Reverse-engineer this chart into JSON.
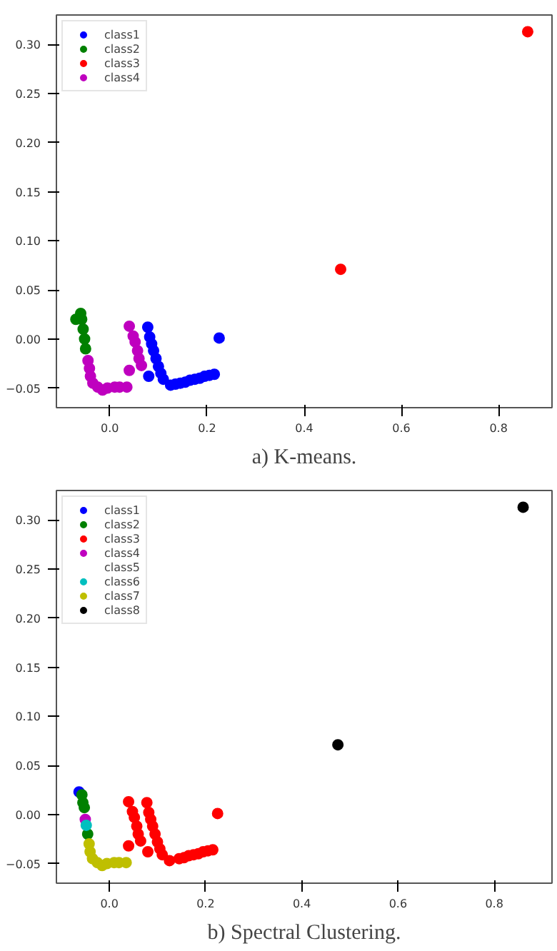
{
  "chart_data": [
    {
      "type": "scatter",
      "title": "a) K-means.",
      "marker": "circle",
      "legend": "top left",
      "grid": false,
      "xlim": [
        -0.11,
        0.91
      ],
      "ylim": [
        -0.07,
        0.33
      ],
      "xticks": [
        {
          "value": 0.0,
          "label": "0.0"
        },
        {
          "value": 0.2,
          "label": "0.2"
        },
        {
          "value": 0.4,
          "label": "0.4"
        },
        {
          "value": 0.6,
          "label": "0.6"
        },
        {
          "value": 0.8,
          "label": "0.8"
        }
      ],
      "yticks": [
        {
          "value": -0.05,
          "label": "−0.05"
        },
        {
          "value": 0.0,
          "label": "0.00"
        },
        {
          "value": 0.05,
          "label": "0.05"
        },
        {
          "value": 0.1,
          "label": "0.10"
        },
        {
          "value": 0.15,
          "label": "0.15"
        },
        {
          "value": 0.2,
          "label": "0.20"
        },
        {
          "value": 0.25,
          "label": "0.25"
        },
        {
          "value": 0.3,
          "label": "0.30"
        }
      ],
      "series": [
        {
          "name": "class1",
          "color": "#0000ff",
          "x": [
            0.078,
            0.082,
            0.086,
            0.09,
            0.095,
            0.1,
            0.105,
            0.11,
            0.125,
            0.135,
            0.145,
            0.155,
            0.165,
            0.175,
            0.185,
            0.195,
            0.205,
            0.215,
            0.225,
            0.08
          ],
          "values": [
            0.012,
            0.002,
            -0.005,
            -0.012,
            -0.02,
            -0.028,
            -0.035,
            -0.041,
            -0.047,
            -0.046,
            -0.045,
            -0.044,
            -0.042,
            -0.041,
            -0.04,
            -0.038,
            -0.037,
            -0.036,
            0.001,
            -0.038
          ]
        },
        {
          "name": "class2",
          "color": "#008000",
          "x": [
            -0.07,
            -0.06,
            -0.058,
            -0.055,
            -0.052,
            -0.05
          ],
          "values": [
            0.02,
            0.026,
            0.02,
            0.01,
            0.0,
            -0.01
          ]
        },
        {
          "name": "class3",
          "color": "#ff0000",
          "x": [
            0.475,
            0.86
          ],
          "values": [
            0.071,
            0.313
          ]
        },
        {
          "name": "class4",
          "color": "#bf00bf",
          "x": [
            -0.045,
            -0.042,
            -0.04,
            -0.035,
            -0.025,
            -0.015,
            -0.005,
            0.01,
            0.02,
            0.035,
            0.04,
            0.048,
            0.052,
            0.057,
            0.06,
            0.065,
            0.04
          ],
          "values": [
            -0.022,
            -0.03,
            -0.038,
            -0.045,
            -0.049,
            -0.052,
            -0.05,
            -0.049,
            -0.049,
            -0.049,
            0.013,
            0.003,
            -0.003,
            -0.012,
            -0.02,
            -0.027,
            -0.032
          ]
        }
      ]
    },
    {
      "type": "scatter",
      "title": "b) Spectral Clustering.",
      "marker": "circle",
      "legend": "top left",
      "grid": false,
      "xlim": [
        -0.11,
        0.92
      ],
      "ylim": [
        -0.07,
        0.33
      ],
      "xticks": [
        {
          "value": 0.0,
          "label": "0.0"
        },
        {
          "value": 0.2,
          "label": "0.2"
        },
        {
          "value": 0.4,
          "label": "0.4"
        },
        {
          "value": 0.6,
          "label": "0.6"
        },
        {
          "value": 0.8,
          "label": "0.8"
        }
      ],
      "yticks": [
        {
          "value": -0.05,
          "label": "−0.05"
        },
        {
          "value": 0.0,
          "label": "0.00"
        },
        {
          "value": 0.05,
          "label": "0.05"
        },
        {
          "value": 0.1,
          "label": "0.10"
        },
        {
          "value": 0.15,
          "label": "0.15"
        },
        {
          "value": 0.2,
          "label": "0.20"
        },
        {
          "value": 0.25,
          "label": "0.25"
        },
        {
          "value": 0.3,
          "label": "0.30"
        }
      ],
      "series": [
        {
          "name": "class1",
          "color": "#0000ff",
          "x": [
            -0.063
          ],
          "values": [
            0.023
          ]
        },
        {
          "name": "class2",
          "color": "#008000",
          "x": [
            -0.057,
            -0.055,
            -0.052,
            -0.045
          ],
          "values": [
            0.02,
            0.012,
            0.007,
            -0.02
          ]
        },
        {
          "name": "class3",
          "color": "#ff0000",
          "x": [
            0.078,
            0.082,
            0.086,
            0.09,
            0.095,
            0.1,
            0.105,
            0.11,
            0.125,
            0.145,
            0.155,
            0.165,
            0.175,
            0.185,
            0.195,
            0.205,
            0.215,
            0.225,
            0.08,
            0.04,
            0.048,
            0.052,
            0.057,
            0.06,
            0.065,
            0.04
          ],
          "values": [
            0.012,
            0.002,
            -0.005,
            -0.012,
            -0.02,
            -0.028,
            -0.035,
            -0.041,
            -0.047,
            -0.045,
            -0.044,
            -0.042,
            -0.041,
            -0.04,
            -0.038,
            -0.037,
            -0.036,
            0.001,
            -0.038,
            0.013,
            0.003,
            -0.003,
            -0.012,
            -0.02,
            -0.027,
            -0.032
          ]
        },
        {
          "name": "class4",
          "color": "#bf00bf",
          "x": [
            -0.05
          ],
          "values": [
            -0.005
          ]
        },
        {
          "name": "class5"
        },
        {
          "name": "class6",
          "color": "#00bfbf",
          "x": [
            -0.048
          ],
          "values": [
            -0.011
          ]
        },
        {
          "name": "class7",
          "color": "#bfbf00",
          "x": [
            -0.042,
            -0.04,
            -0.035,
            -0.025,
            -0.015,
            -0.005,
            0.01,
            0.02,
            0.035
          ],
          "values": [
            -0.03,
            -0.038,
            -0.045,
            -0.049,
            -0.052,
            -0.05,
            -0.049,
            -0.049,
            -0.049
          ]
        },
        {
          "name": "class8",
          "color": "#000000",
          "x": [
            0.475,
            0.86
          ],
          "values": [
            0.071,
            0.313
          ]
        }
      ]
    }
  ]
}
